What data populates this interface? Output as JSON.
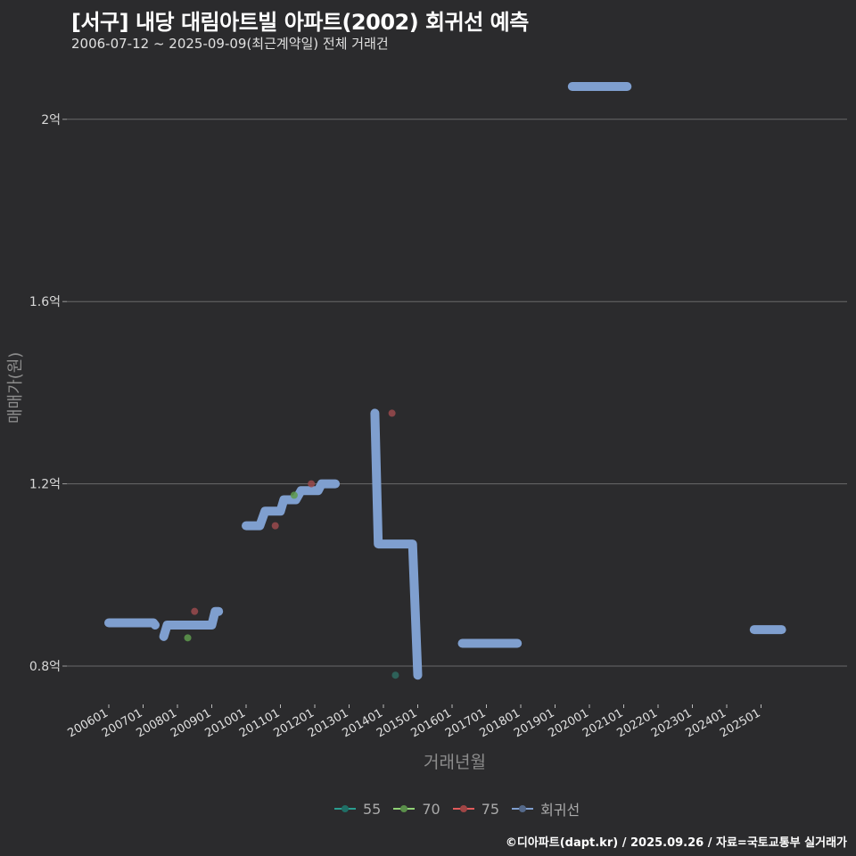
{
  "header": {
    "title": "[서구] 내당 대림아트빌 아파트(2002) 회귀선 예측",
    "subtitle": "2006-07-12 ~ 2025-09-09(최근계약일) 전체 거래건"
  },
  "footer": "©디아파트(dapt.kr) / 2025.09.26 / 자료=국토교통부 실거래가",
  "legend": {
    "items": [
      {
        "label": "55",
        "color": "#2a9d8f"
      },
      {
        "label": "70",
        "color": "#8fd175"
      },
      {
        "label": "75",
        "color": "#e05a5a"
      },
      {
        "label": "회귀선",
        "color": "#7f9fcf"
      }
    ]
  },
  "chart_data": {
    "type": "line",
    "title": "[서구] 내당 대림아트빌 아파트(2002) 회귀선 예측",
    "subtitle": "2006-07-12 ~ 2025-09-09(최근계약일) 전체 거래건",
    "xlabel": "거래년월",
    "ylabel": "매매가(원)",
    "x_ticks": [
      "200601",
      "200701",
      "200801",
      "200901",
      "201001",
      "201101",
      "201201",
      "201301",
      "201401",
      "201501",
      "201601",
      "201701",
      "201801",
      "201901",
      "202001",
      "202101",
      "202201",
      "202301",
      "202401",
      "202501"
    ],
    "y_ticks": [
      {
        "value": 0.8,
        "label": "0.8억"
      },
      {
        "value": 1.2,
        "label": "1.2억"
      },
      {
        "value": 1.6,
        "label": "1.6억"
      },
      {
        "value": 2.0,
        "label": "2억"
      }
    ],
    "ylim": [
      0.72,
      2.12
    ],
    "xlim": [
      2005.2,
      2027.9
    ],
    "grid": "horizontal",
    "legend_position": "bottom",
    "series": [
      {
        "name": "회귀선",
        "type": "line",
        "color": "#7f9fcf",
        "segments": [
          [
            [
              2006.0,
              0.895
            ],
            [
              2007.3,
              0.895
            ],
            [
              2007.35,
              0.89
            ]
          ],
          [
            [
              2007.6,
              0.865
            ],
            [
              2007.7,
              0.89
            ],
            [
              2009.0,
              0.89
            ],
            [
              2009.1,
              0.92
            ],
            [
              2009.2,
              0.92
            ]
          ],
          [
            [
              2010.0,
              1.108
            ],
            [
              2010.4,
              1.108
            ],
            [
              2010.55,
              1.14
            ],
            [
              2011.0,
              1.14
            ],
            [
              2011.1,
              1.165
            ],
            [
              2011.45,
              1.165
            ],
            [
              2011.6,
              1.185
            ],
            [
              2012.1,
              1.185
            ],
            [
              2012.2,
              1.2
            ],
            [
              2012.6,
              1.2
            ]
          ],
          [
            [
              2013.75,
              1.355
            ],
            [
              2013.85,
              1.068
            ],
            [
              2014.85,
              1.068
            ],
            [
              2015.0,
              0.78
            ]
          ],
          [
            [
              2016.3,
              0.85
            ],
            [
              2017.9,
              0.85
            ]
          ],
          [
            [
              2019.5,
              2.072
            ],
            [
              2021.1,
              2.072
            ]
          ],
          [
            [
              2024.8,
              0.88
            ],
            [
              2025.6,
              0.88
            ]
          ]
        ]
      },
      {
        "name": "55",
        "type": "scatter",
        "color": "#2a9d8f",
        "points": [
          [
            2014.35,
            0.78
          ]
        ]
      },
      {
        "name": "70",
        "type": "scatter",
        "color": "#8fd175",
        "points": [
          [
            2008.3,
            0.862
          ],
          [
            2011.4,
            1.175
          ]
        ]
      },
      {
        "name": "75",
        "type": "scatter",
        "color": "#e05a5a",
        "points": [
          [
            2008.5,
            0.92
          ],
          [
            2010.85,
            1.108
          ],
          [
            2011.9,
            1.2
          ],
          [
            2014.25,
            1.355
          ]
        ]
      }
    ]
  }
}
